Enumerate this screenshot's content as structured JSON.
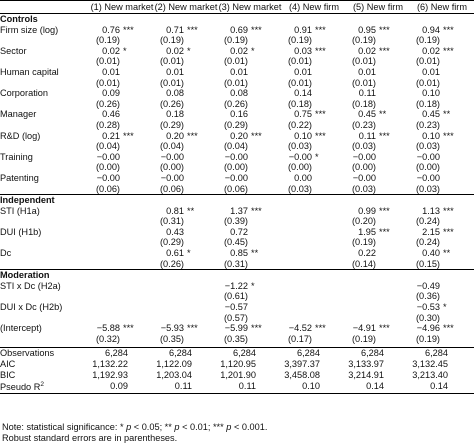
{
  "columns": [
    "(1) New market",
    "(2) New market",
    "(3) New market",
    "(4) New firm",
    "(5) New firm",
    "(6) New firm"
  ],
  "sections": [
    {
      "title": "Controls",
      "rows": [
        {
          "label": "Firm size (log)",
          "cells": [
            [
              "0.76",
              "***"
            ],
            [
              "0.71",
              "***"
            ],
            [
              "0.69",
              "***"
            ],
            [
              "0.91",
              "***"
            ],
            [
              "0.95",
              "***"
            ],
            [
              "0.94",
              "***"
            ]
          ]
        },
        {
          "label": "",
          "cells": [
            [
              "(0.19)",
              ""
            ],
            [
              "(0.19)",
              ""
            ],
            [
              "(0.19)",
              ""
            ],
            [
              "(0.19)",
              ""
            ],
            [
              "(0.19)",
              ""
            ],
            [
              "(0.19)",
              ""
            ]
          ]
        },
        {
          "label": "Sector",
          "cells": [
            [
              "0.02",
              "*"
            ],
            [
              "0.02",
              "*"
            ],
            [
              "0.02",
              "*"
            ],
            [
              "0.03",
              "***"
            ],
            [
              "0.02",
              "***"
            ],
            [
              "0.02",
              "***"
            ]
          ]
        },
        {
          "label": "",
          "cells": [
            [
              "(0.01)",
              ""
            ],
            [
              "(0.01)",
              ""
            ],
            [
              "(0.01)",
              ""
            ],
            [
              "(0.01)",
              ""
            ],
            [
              "(0.01)",
              ""
            ],
            [
              "(0.01)",
              ""
            ]
          ]
        },
        {
          "label": "Human capital",
          "cells": [
            [
              "0.01",
              ""
            ],
            [
              "0.01",
              ""
            ],
            [
              "0.01",
              ""
            ],
            [
              "0.01",
              ""
            ],
            [
              "0.01",
              ""
            ],
            [
              "0.01",
              ""
            ]
          ]
        },
        {
          "label": "",
          "cells": [
            [
              "(0.01)",
              ""
            ],
            [
              "(0.01)",
              ""
            ],
            [
              "(0.01)",
              ""
            ],
            [
              "(0.01)",
              ""
            ],
            [
              "(0.01)",
              ""
            ],
            [
              "(0.01)",
              ""
            ]
          ]
        },
        {
          "label": "Corporation",
          "cells": [
            [
              "0.09",
              ""
            ],
            [
              "0.08",
              ""
            ],
            [
              "0.08",
              ""
            ],
            [
              "0.14",
              ""
            ],
            [
              "0.11",
              ""
            ],
            [
              "0.10",
              ""
            ]
          ]
        },
        {
          "label": "",
          "cells": [
            [
              "(0.26)",
              ""
            ],
            [
              "(0.26)",
              ""
            ],
            [
              "(0.26)",
              ""
            ],
            [
              "(0.18)",
              ""
            ],
            [
              "(0.18)",
              ""
            ],
            [
              "(0.18)",
              ""
            ]
          ]
        },
        {
          "label": "Manager",
          "cells": [
            [
              "0.46",
              ""
            ],
            [
              "0.18",
              ""
            ],
            [
              "0.16",
              ""
            ],
            [
              "0.75",
              "***"
            ],
            [
              "0.45",
              "**"
            ],
            [
              "0.45",
              "**"
            ]
          ]
        },
        {
          "label": "",
          "cells": [
            [
              "(0.28)",
              ""
            ],
            [
              "(0.29)",
              ""
            ],
            [
              "(0.29)",
              ""
            ],
            [
              "(0.22)",
              ""
            ],
            [
              "(0.23)",
              ""
            ],
            [
              "(0.23)",
              ""
            ]
          ]
        },
        {
          "label": "R&D (log)",
          "cells": [
            [
              "0.21",
              "***"
            ],
            [
              "0.20",
              "***"
            ],
            [
              "0.20",
              "***"
            ],
            [
              "0.10",
              "***"
            ],
            [
              "0.11",
              "***"
            ],
            [
              "0.10",
              "***"
            ]
          ]
        },
        {
          "label": "",
          "cells": [
            [
              "(0.04)",
              ""
            ],
            [
              "(0.04)",
              ""
            ],
            [
              "(0.04)",
              ""
            ],
            [
              "(0.03)",
              ""
            ],
            [
              "(0.03)",
              ""
            ],
            [
              "(0.03)",
              ""
            ]
          ]
        },
        {
          "label": "Training",
          "cells": [
            [
              "−0.00",
              ""
            ],
            [
              "−0.00",
              ""
            ],
            [
              "−0.00",
              ""
            ],
            [
              "−0.00",
              "*"
            ],
            [
              "−0.00",
              ""
            ],
            [
              "−0.00",
              ""
            ]
          ]
        },
        {
          "label": "",
          "cells": [
            [
              "(0.00)",
              ""
            ],
            [
              "(0.00)",
              ""
            ],
            [
              "(0.00)",
              ""
            ],
            [
              "(0.00)",
              ""
            ],
            [
              "(0.00)",
              ""
            ],
            [
              "(0.00)",
              ""
            ]
          ]
        },
        {
          "label": "Patenting",
          "cells": [
            [
              "−0.00",
              ""
            ],
            [
              "−0.00",
              ""
            ],
            [
              "−0.00",
              ""
            ],
            [
              "0.00",
              ""
            ],
            [
              "−0.00",
              ""
            ],
            [
              "−0.00",
              ""
            ]
          ]
        },
        {
          "label": "",
          "cells": [
            [
              "(0.06)",
              ""
            ],
            [
              "(0.06)",
              ""
            ],
            [
              "(0.06)",
              ""
            ],
            [
              "(0.03)",
              ""
            ],
            [
              "(0.03)",
              ""
            ],
            [
              "(0.03)",
              ""
            ]
          ]
        }
      ]
    },
    {
      "title": "Independent",
      "rows": [
        {
          "label": "STI (H1a)",
          "cells": [
            [
              "",
              ""
            ],
            [
              "0.81",
              "**"
            ],
            [
              "1.37",
              "***"
            ],
            [
              "",
              ""
            ],
            [
              "0.99",
              "***"
            ],
            [
              "1.13",
              "***"
            ]
          ]
        },
        {
          "label": "",
          "cells": [
            [
              "",
              ""
            ],
            [
              "(0.31)",
              ""
            ],
            [
              "(0.39)",
              ""
            ],
            [
              "",
              ""
            ],
            [
              "(0.20)",
              ""
            ],
            [
              "(0.24)",
              ""
            ]
          ]
        },
        {
          "label": "DUI (H1b)",
          "cells": [
            [
              "",
              ""
            ],
            [
              "0.43",
              ""
            ],
            [
              "0.72",
              ""
            ],
            [
              "",
              ""
            ],
            [
              "1.95",
              "***"
            ],
            [
              "2.15",
              "***"
            ]
          ]
        },
        {
          "label": "",
          "cells": [
            [
              "",
              ""
            ],
            [
              "(0.29)",
              ""
            ],
            [
              "(0.45)",
              ""
            ],
            [
              "",
              ""
            ],
            [
              "(0.19)",
              ""
            ],
            [
              "(0.24)",
              ""
            ]
          ]
        },
        {
          "label": "Dc",
          "cells": [
            [
              "",
              ""
            ],
            [
              "0.61",
              "*"
            ],
            [
              "0.85",
              "**"
            ],
            [
              "",
              ""
            ],
            [
              "0.22",
              ""
            ],
            [
              "0.40",
              "**"
            ]
          ]
        },
        {
          "label": "",
          "cells": [
            [
              "",
              ""
            ],
            [
              "(0.26)",
              ""
            ],
            [
              "(0.31)",
              ""
            ],
            [
              "",
              ""
            ],
            [
              "(0.14)",
              ""
            ],
            [
              "(0.15)",
              ""
            ]
          ]
        }
      ]
    },
    {
      "title": "Moderation",
      "rows": [
        {
          "label": "STI x Dc (H2a)",
          "cells": [
            [
              "",
              ""
            ],
            [
              "",
              ""
            ],
            [
              "−1.22",
              "*"
            ],
            [
              "",
              ""
            ],
            [
              "",
              ""
            ],
            [
              "−0.49",
              ""
            ]
          ]
        },
        {
          "label": "",
          "cells": [
            [
              "",
              ""
            ],
            [
              "",
              ""
            ],
            [
              "(0.61)",
              ""
            ],
            [
              "",
              ""
            ],
            [
              "",
              ""
            ],
            [
              "(0.36)",
              ""
            ]
          ]
        },
        {
          "label": "DUI x Dc (H2b)",
          "cells": [
            [
              "",
              ""
            ],
            [
              "",
              ""
            ],
            [
              "−0.57",
              ""
            ],
            [
              "",
              ""
            ],
            [
              "",
              ""
            ],
            [
              "−0.53",
              "*"
            ]
          ]
        },
        {
          "label": "",
          "cells": [
            [
              "",
              ""
            ],
            [
              "",
              ""
            ],
            [
              "(0.57)",
              ""
            ],
            [
              "",
              ""
            ],
            [
              "",
              ""
            ],
            [
              "(0.30)",
              ""
            ]
          ]
        },
        {
          "label": "(Intercept)",
          "cells": [
            [
              "−5.88",
              "***"
            ],
            [
              "−5.93",
              "***"
            ],
            [
              "−5.99",
              "***"
            ],
            [
              "−4.52",
              "***"
            ],
            [
              "−4.91",
              "***"
            ],
            [
              "−4.96",
              "***"
            ]
          ]
        },
        {
          "label": "",
          "cells": [
            [
              "(0.32)",
              ""
            ],
            [
              "(0.35)",
              ""
            ],
            [
              "(0.35)",
              ""
            ],
            [
              "(0.17)",
              ""
            ],
            [
              "(0.19)",
              ""
            ],
            [
              "(0.19)",
              ""
            ]
          ]
        }
      ]
    }
  ],
  "stats": [
    {
      "label": "Observations",
      "cells": [
        "6,284",
        "6,284",
        "6,284",
        "6,284",
        "6,284",
        "6,284"
      ]
    },
    {
      "label": "AIC",
      "cells": [
        "1,132.22",
        "1,122.09",
        "1,120.95",
        "3,397.37",
        "3,133.97",
        "3,132.45"
      ]
    },
    {
      "label": "BIC",
      "cells": [
        "1,192.93",
        "1,203.04",
        "1,201.90",
        "3,458.08",
        "3,214.91",
        "3,213.40"
      ]
    },
    {
      "label": "Pseudo R",
      "sup": "2",
      "cells": [
        "0.09",
        "0.11",
        "0.11",
        "0.10",
        "0.14",
        "0.14"
      ]
    }
  ],
  "notes": {
    "prefix": "Note: statistical significance: * ",
    "p1": "p",
    "t1": " < 0.05; ** ",
    "p2": "p",
    "t2": " < 0.01; *** ",
    "p3": "p",
    "t3": " < 0.001.",
    "line2": "Robust standard errors are in parentheses."
  }
}
